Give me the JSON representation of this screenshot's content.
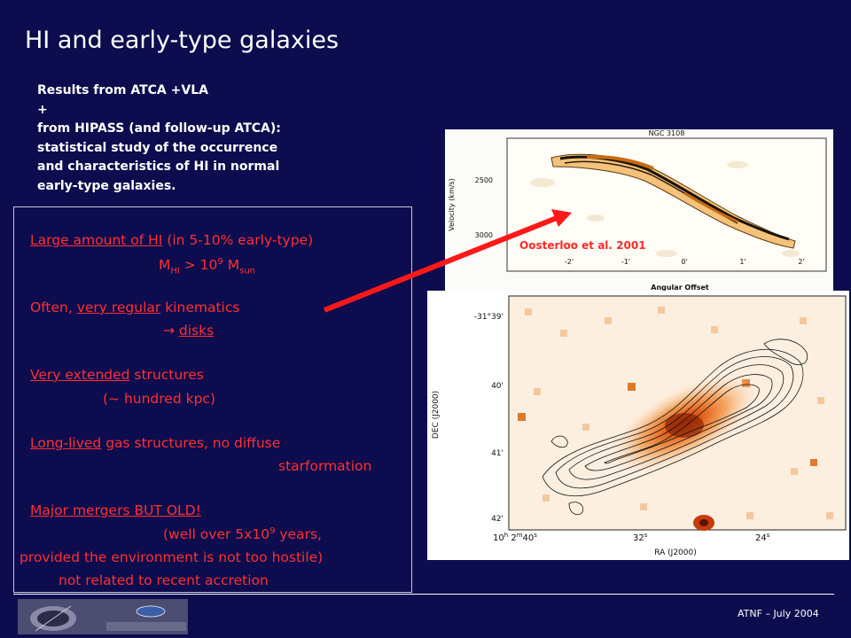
{
  "slide": {
    "title": "HI and early-type galaxies",
    "intro_lines": [
      "Results from ATCA +VLA",
      "+",
      "from HIPASS (and follow-up ATCA):",
      "statistical study of the occurrence",
      "and characteristics of HI in normal",
      "early-type galaxies."
    ],
    "box": {
      "p1_underlined": "Large amount of HI",
      "p1_rest": " (in 5-10% early-type)",
      "mass_m": "M",
      "mass_sub_hi": "HI",
      "mass_gt": " > 10",
      "mass_exp": "9",
      "mass_m2": " M",
      "mass_sub_sun": "sun",
      "p2_prefix": "Often, ",
      "p2_underlined": "very regular",
      "p2_rest": " kinematics",
      "p3_arrow": "→ ",
      "p3_underlined": "disks",
      "p4_underlined": "Very extended",
      "p4_rest": " structures",
      "p5": "(~ hundred kpc)",
      "p6_underlined": "Long-lived",
      "p6_rest": " gas structures, no diffuse",
      "p7": "starformation",
      "p8_underlined": "Major mergers BUT OLD!",
      "p9_a": "(well over 5x10",
      "p9_exp": "9",
      "p9_b": " years,",
      "p10": "provided the environment is not too hostile)",
      "p11": "not related to recent accretion"
    },
    "credit": "Oosterloo et al. 2001",
    "footer": "ATNF – July 2004",
    "colors": {
      "background": "#0c0c4e",
      "accent": "#ff3030",
      "text": "#ffffff"
    }
  },
  "pv_plot": {
    "title": "NGC 3108",
    "ylabel": "Velocity (km/s)",
    "xlabel": "Angular Offset",
    "yticks": [
      "2500",
      "3000"
    ],
    "xticks": [
      "-2'",
      "-1'",
      "0'",
      "1'",
      "2'"
    ]
  },
  "map_plot": {
    "ylabel": "DEC (J2000)",
    "xlabel": "RA (J2000)",
    "yticks": [
      "-31°39'",
      "40'",
      "41'",
      "42'"
    ],
    "xtick_first_a": "10",
    "xtick_first_h": "h",
    "xtick_first_b": " 2",
    "xtick_first_m": "m",
    "xtick_first_c": "40",
    "xtick_first_s": "s",
    "xtick_mid_a": "32",
    "xtick_mid_s": "s",
    "xtick_last_a": "24",
    "xtick_last_s": "s"
  }
}
